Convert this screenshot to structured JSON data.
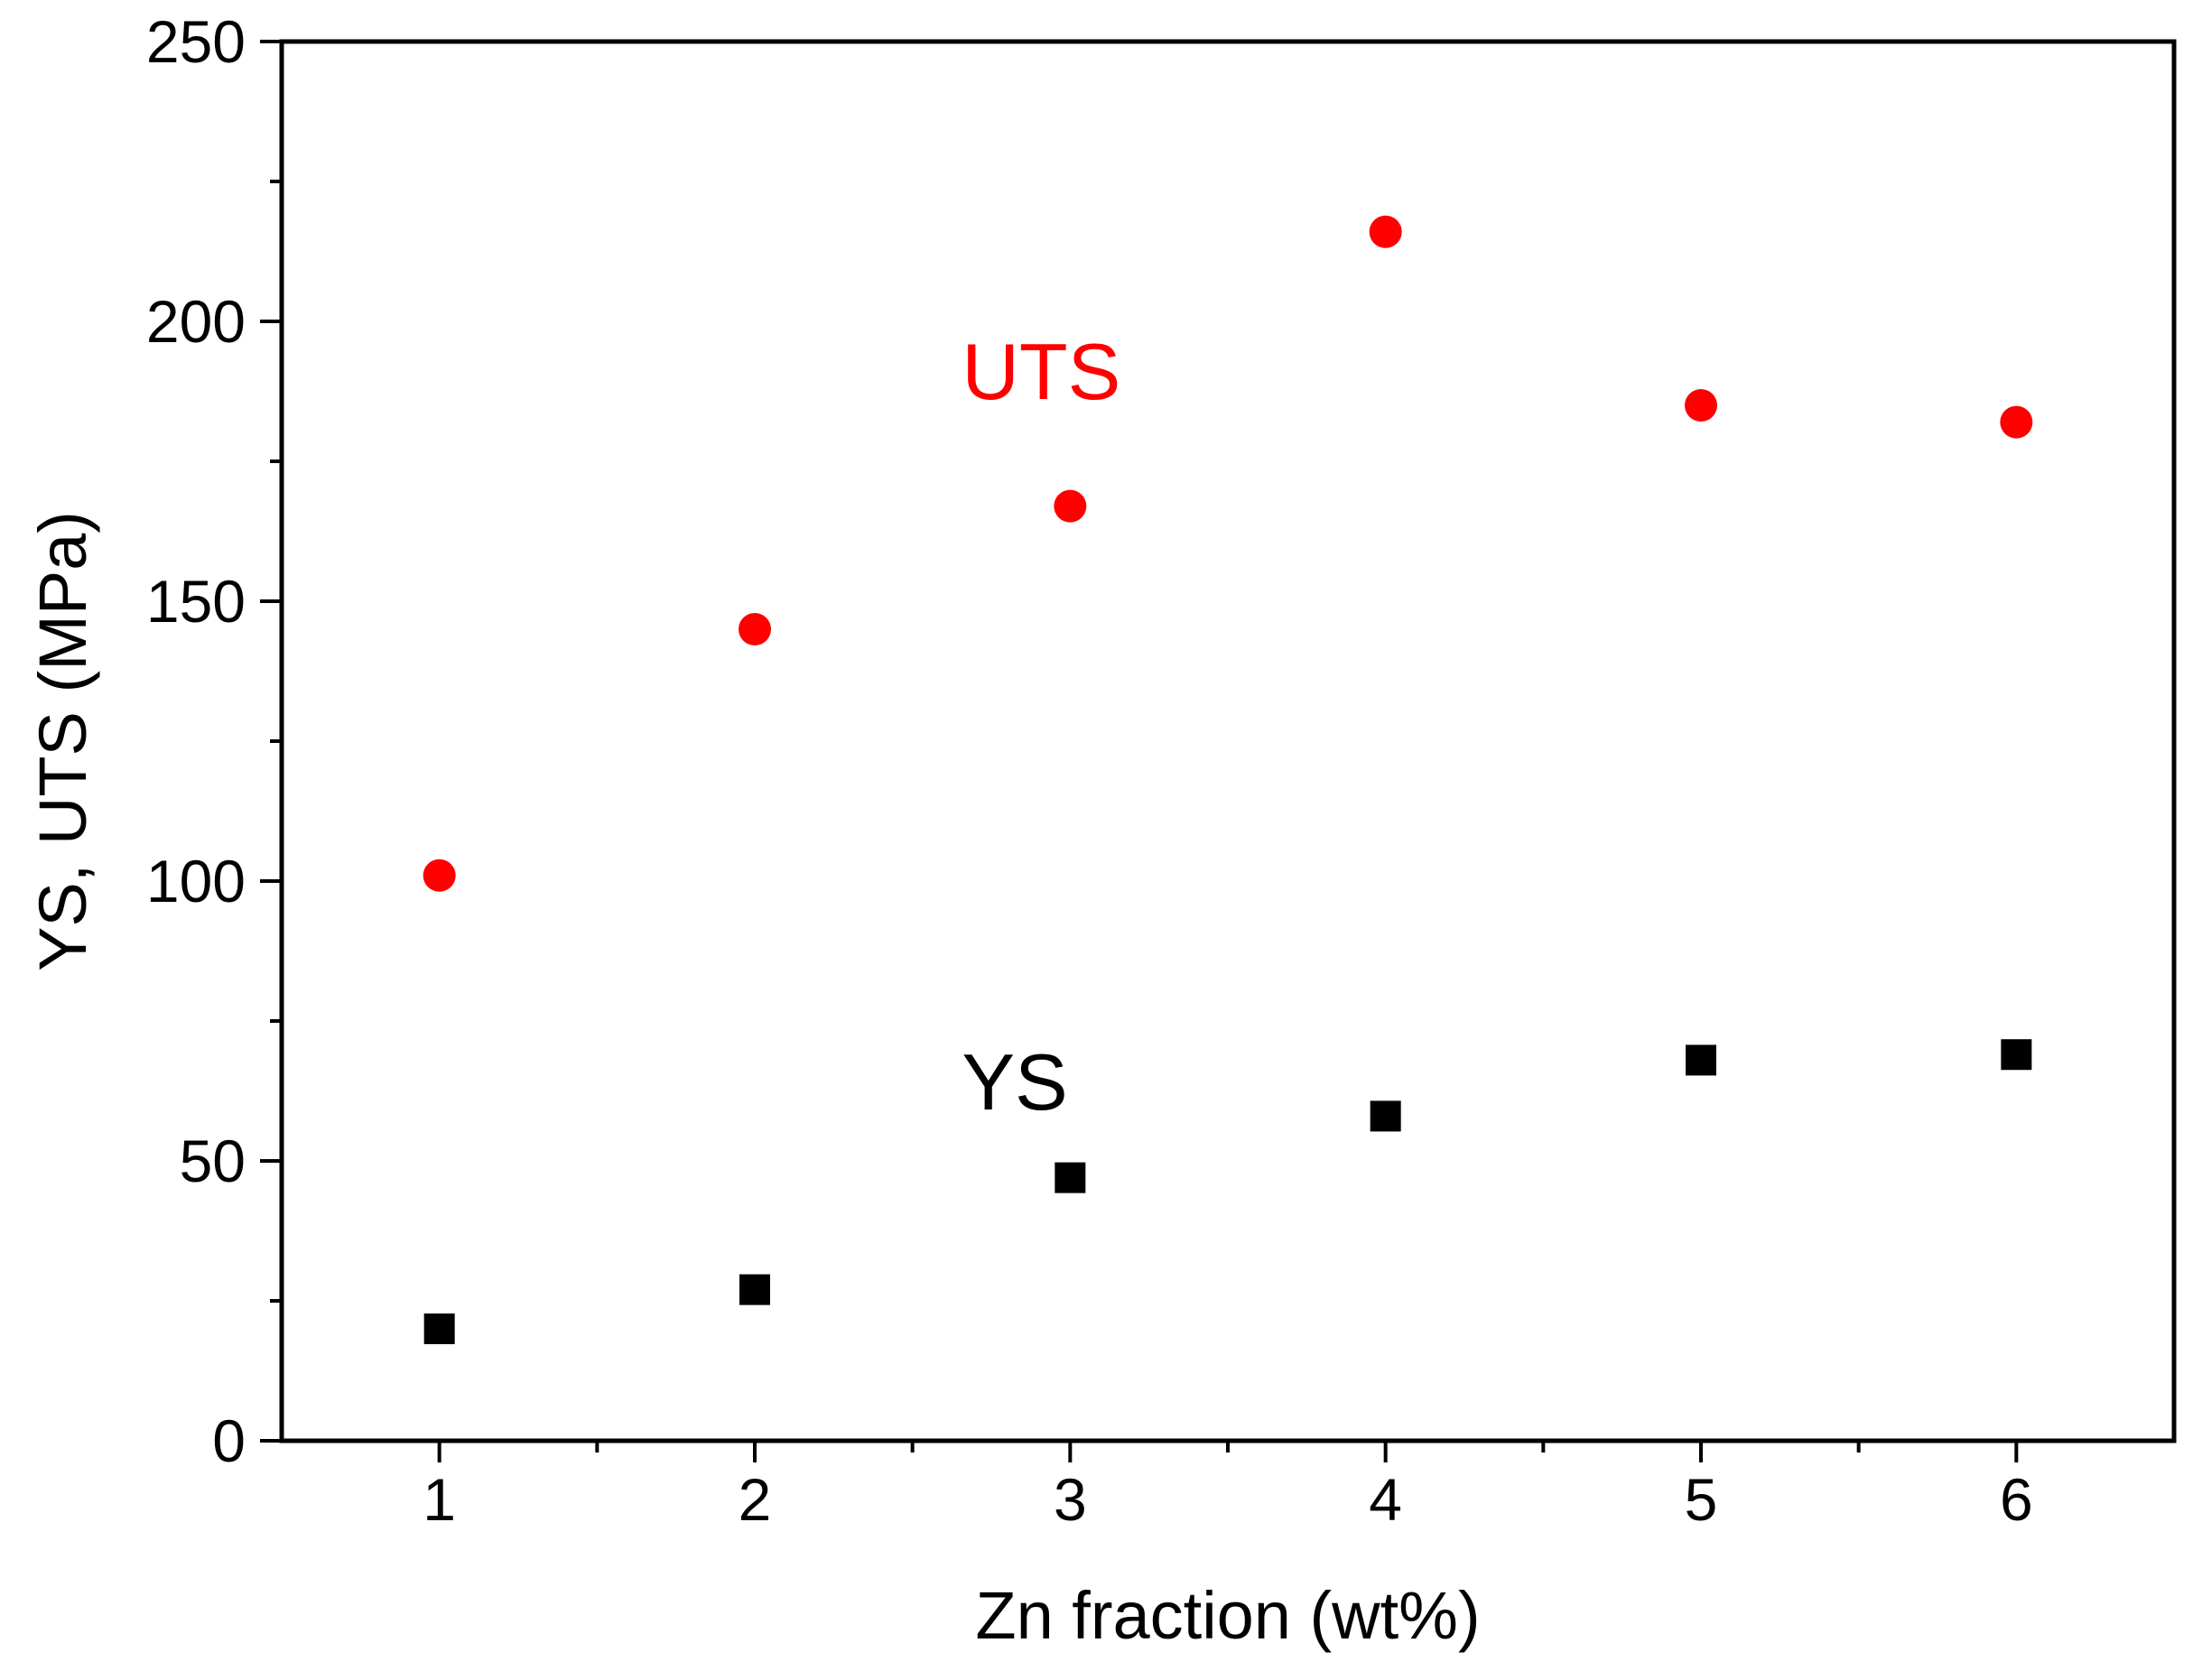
{
  "chart_data": {
    "type": "scatter",
    "title": "",
    "xlabel": "Zn fraction (wt%)",
    "ylabel": "YS, UTS (MPa)",
    "xlim": [
      0.5,
      6.5
    ],
    "ylim": [
      0,
      250
    ],
    "xticks": [
      1,
      2,
      3,
      4,
      5,
      6
    ],
    "yticks": [
      0,
      50,
      100,
      150,
      200,
      250
    ],
    "grid": false,
    "legend": "none",
    "series": [
      {
        "name": "UTS",
        "marker": "circle",
        "color": "#ff0000",
        "label_at": [
          3.0,
          191
        ],
        "x": [
          1,
          2,
          3,
          4,
          5,
          6
        ],
        "y": [
          101,
          145,
          167,
          216,
          185,
          182
        ]
      },
      {
        "name": "YS",
        "marker": "square",
        "color": "#000000",
        "label_at": [
          3.0,
          64
        ],
        "x": [
          1,
          2,
          3,
          4,
          5,
          6
        ],
        "y": [
          20,
          27,
          47,
          58,
          68,
          69
        ]
      }
    ]
  }
}
